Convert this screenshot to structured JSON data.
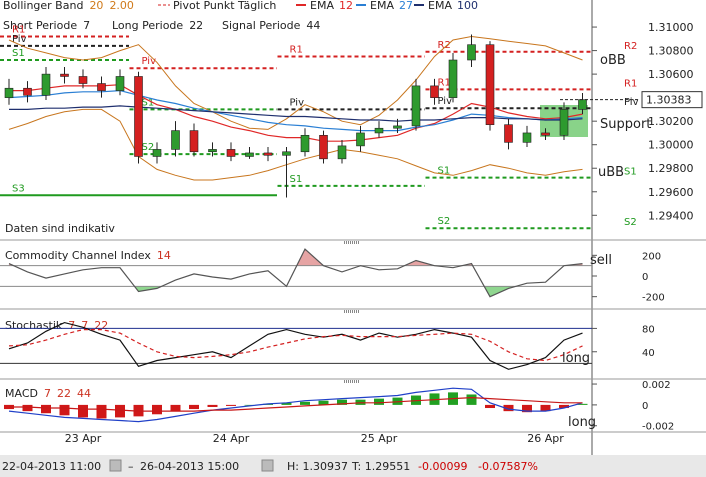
{
  "chart_data": [
    {
      "type": "candlestick",
      "header": {
        "bollinger": {
          "name": "Bollinger Band",
          "params": [
            "20",
            "2.00"
          ]
        },
        "pivot": "Pivot Punkt Täglich",
        "macd_params": [
          {
            "text": "Short Periode",
            "param": "7"
          },
          {
            "text": "Long Periode",
            "param": "22"
          },
          {
            "text": "Signal Periode",
            "param": "44"
          }
        ]
      },
      "categories": [
        null,
        null,
        null,
        null,
        "23 Apr",
        null,
        null,
        null,
        null,
        null,
        null,
        null,
        "24 Apr",
        null,
        null,
        null,
        null,
        null,
        null,
        null,
        "25 Apr",
        null,
        null,
        null,
        null,
        null,
        null,
        null,
        null,
        "26 Apr",
        null,
        null
      ],
      "open": [
        1.304,
        1.3048,
        1.3042,
        1.306,
        1.3058,
        1.3052,
        1.3046,
        1.3058,
        1.299,
        1.2996,
        1.3012,
        1.2994,
        1.2996,
        1.299,
        1.2993,
        1.2991,
        1.2994,
        1.3008,
        1.2988,
        1.2999,
        1.301,
        1.3014,
        1.3016,
        1.305,
        1.304,
        1.3072,
        1.3085,
        1.3017,
        1.3002,
        1.301,
        1.3008,
        1.303
      ],
      "high": [
        1.3056,
        1.3054,
        1.3066,
        1.3066,
        1.3064,
        1.3058,
        1.3064,
        1.3062,
        1.3002,
        1.302,
        1.3018,
        1.3002,
        1.3002,
        1.2998,
        1.2998,
        1.2998,
        1.3014,
        1.3012,
        1.3004,
        1.3016,
        1.302,
        1.3022,
        1.3056,
        1.3056,
        1.3078,
        1.30937,
        1.3088,
        1.3022,
        1.3016,
        1.3014,
        1.3036,
        1.3044
      ],
      "low": [
        1.3034,
        1.3036,
        1.3038,
        1.3052,
        1.3048,
        1.304,
        1.3042,
        1.2984,
        1.2984,
        1.299,
        1.299,
        1.299,
        1.2986,
        1.2988,
        1.2986,
        1.29551,
        1.299,
        1.2984,
        1.2984,
        1.2994,
        1.3006,
        1.301,
        1.3012,
        1.3034,
        1.3036,
        1.3066,
        1.3012,
        1.2996,
        1.2998,
        1.3004,
        1.3004,
        1.3026
      ],
      "close": [
        1.3048,
        1.3042,
        1.306,
        1.3058,
        1.3052,
        1.3046,
        1.3058,
        1.299,
        1.2996,
        1.3012,
        1.2994,
        1.2996,
        1.299,
        1.2993,
        1.2991,
        1.2994,
        1.3008,
        1.2988,
        1.2999,
        1.301,
        1.3014,
        1.3016,
        1.305,
        1.304,
        1.3072,
        1.3085,
        1.3017,
        1.3002,
        1.301,
        1.3008,
        1.303,
        1.30383
      ],
      "up_color": "#2e9a2e",
      "down_color": "#d42020",
      "bollinger": {
        "color": "#c8761e",
        "upper": [
          1.3089,
          1.3082,
          1.3078,
          1.3074,
          1.3072,
          1.3074,
          1.308,
          1.3085,
          1.307,
          1.305,
          1.3035,
          1.3028,
          1.302,
          1.3014,
          1.3013,
          1.3022,
          1.3034,
          1.3028,
          1.302,
          1.3017,
          1.3025,
          1.3038,
          1.3055,
          1.3075,
          1.3089,
          1.3092,
          1.309,
          1.3088,
          1.3086,
          1.3084,
          1.3078,
          1.3072
        ],
        "lower": [
          1.3013,
          1.3018,
          1.3024,
          1.3028,
          1.303,
          1.303,
          1.302,
          1.299,
          1.2979,
          1.2974,
          1.297,
          1.297,
          1.2972,
          1.2974,
          1.2978,
          1.2983,
          1.2988,
          1.2992,
          1.2996,
          1.2994,
          1.2991,
          1.2988,
          1.2982,
          1.2976,
          1.2974,
          1.2978,
          1.2983,
          1.298,
          1.2976,
          1.2974,
          1.2977,
          1.2979
        ]
      },
      "series": [
        {
          "name": "EMA",
          "param": "12",
          "color": "#e02828",
          "values": [
            1.3046,
            1.3046,
            1.3048,
            1.305,
            1.305,
            1.305,
            1.3051,
            1.3042,
            1.3034,
            1.303,
            1.3024,
            1.302,
            1.3015,
            1.3012,
            1.3008,
            1.3006,
            1.3006,
            1.3003,
            1.3003,
            1.3004,
            1.3006,
            1.3008,
            1.3014,
            1.3018,
            1.3026,
            1.3035,
            1.3032,
            1.3027,
            1.3024,
            1.3022,
            1.3023,
            1.3026
          ]
        },
        {
          "name": "EMA",
          "param": "27",
          "color": "#2a7fd4",
          "values": [
            1.304,
            1.3041,
            1.3042,
            1.3044,
            1.3045,
            1.3045,
            1.3046,
            1.3042,
            1.3038,
            1.3035,
            1.3031,
            1.3028,
            1.3025,
            1.3022,
            1.3019,
            1.3017,
            1.3016,
            1.3014,
            1.3013,
            1.3012,
            1.3012,
            1.3012,
            1.3015,
            1.3017,
            1.3021,
            1.3026,
            1.3025,
            1.3023,
            1.3022,
            1.3021,
            1.3022,
            1.3023
          ]
        },
        {
          "name": "EMA",
          "param": "100",
          "color": "#1f2f6e",
          "values": [
            1.303,
            1.303,
            1.3031,
            1.3031,
            1.3032,
            1.3032,
            1.3033,
            1.3032,
            1.3031,
            1.303,
            1.3029,
            1.3028,
            1.3027,
            1.3026,
            1.3025,
            1.3024,
            1.3024,
            1.3023,
            1.3022,
            1.3021,
            1.3021,
            1.302,
            1.3021,
            1.3021,
            1.3022,
            1.3023,
            1.3023,
            1.3022,
            1.3022,
            1.3021,
            1.3021,
            1.3022
          ]
        }
      ],
      "pivot_levels": [
        {
          "label": "R1",
          "value": 1.3092,
          "start": 0,
          "end": 6,
          "color": "#d42020"
        },
        {
          "label": "Piv",
          "value": 1.3084,
          "start": 0,
          "end": 6,
          "color": "#222222"
        },
        {
          "label": "S1",
          "value": 1.3072,
          "start": 0,
          "end": 6,
          "color": "#1f9a1f"
        },
        {
          "label": "Piv",
          "value": 1.3065,
          "start": 7,
          "end": 14,
          "color": "#d42020"
        },
        {
          "label": "S1",
          "value": 1.303,
          "start": 7,
          "end": 14,
          "color": "#1f9a1f"
        },
        {
          "label": "S2",
          "value": 1.2992,
          "start": 7,
          "end": 14,
          "color": "#1f9a1f"
        },
        {
          "label": "S3",
          "value": 1.2957,
          "start": 0,
          "end": 14,
          "color": "#1f9a1f"
        },
        {
          "label": "R1",
          "value": 1.3075,
          "start": 15,
          "end": 22,
          "color": "#d42020"
        },
        {
          "label": "Piv",
          "value": 1.303,
          "start": 15,
          "end": 22,
          "color": "#222222"
        },
        {
          "label": "S1",
          "value": 1.2965,
          "start": 15,
          "end": 22,
          "color": "#1f9a1f"
        },
        {
          "label": "R2",
          "value": 1.3079,
          "start": 23,
          "end": 31,
          "color": "#d42020"
        },
        {
          "label": "R1",
          "value": 1.3047,
          "start": 23,
          "end": 31,
          "color": "#d42020"
        },
        {
          "label": "Piv",
          "value": 1.3031,
          "start": 23,
          "end": 31,
          "color": "#222222"
        },
        {
          "label": "S1",
          "value": 1.2972,
          "start": 23,
          "end": 31,
          "color": "#1f9a1f"
        },
        {
          "label": "S2",
          "value": 1.2929,
          "start": 23,
          "end": 31,
          "color": "#1f9a1f"
        }
      ],
      "annotations": [
        "Daten sind indikativ",
        "oBB",
        "Support",
        "uBB"
      ],
      "last_price": {
        "value": 1.30383,
        "label": "1.30383"
      },
      "ylim": [
        1.2919,
        1.3123
      ],
      "yticks": [
        {
          "value": 1.31,
          "label": "1.31000"
        },
        {
          "value": 1.308,
          "label": "1.30800"
        },
        {
          "value": 1.306,
          "label": "1.30600"
        },
        {
          "value": 1.302,
          "label": "1.30200"
        },
        {
          "value": 1.3,
          "label": "1.30000"
        },
        {
          "value": 1.298,
          "label": "1.29800"
        },
        {
          "value": 1.296,
          "label": "1.29600"
        },
        {
          "value": 1.294,
          "label": "1.29400"
        }
      ]
    },
    {
      "type": "line",
      "title": "Commodity Channel Index",
      "params": [
        "14"
      ],
      "series": [
        {
          "color": "#555555",
          "values": [
            120,
            40,
            -20,
            20,
            60,
            80,
            80,
            -150,
            -120,
            -40,
            20,
            -10,
            -30,
            20,
            50,
            -100,
            260,
            100,
            40,
            100,
            60,
            70,
            150,
            100,
            80,
            120,
            -200,
            -120,
            -70,
            -60,
            100,
            120
          ]
        }
      ],
      "fills": [
        {
          "level": 100,
          "side": "above",
          "color": "#e6a4a4"
        },
        {
          "level": -100,
          "side": "below",
          "color": "#8fd68f"
        }
      ],
      "guides": [
        {
          "value": 100,
          "color": "#8a8a8a"
        },
        {
          "value": -100,
          "color": "#8a8a8a"
        }
      ],
      "annotations": [
        "sell"
      ],
      "ylim": [
        -300,
        300
      ],
      "yticks": [
        200,
        0,
        -200
      ]
    },
    {
      "type": "line",
      "title": "Stochastik",
      "params": [
        "7",
        "7",
        "22"
      ],
      "series": [
        {
          "color": "#111111",
          "values": [
            45,
            55,
            75,
            90,
            82,
            70,
            60,
            15,
            25,
            30,
            35,
            40,
            30,
            50,
            70,
            78,
            70,
            65,
            70,
            60,
            72,
            65,
            70,
            78,
            72,
            65,
            25,
            10,
            18,
            30,
            60,
            72
          ]
        },
        {
          "color": "#d42020",
          "dash": true,
          "values": [
            50,
            52,
            60,
            70,
            78,
            78,
            72,
            55,
            40,
            32,
            30,
            32,
            35,
            40,
            48,
            55,
            62,
            66,
            68,
            66,
            66,
            66,
            68,
            70,
            72,
            70,
            58,
            40,
            28,
            25,
            35,
            50
          ]
        }
      ],
      "guides": [
        {
          "value": 80,
          "color": "#1f2f8e"
        },
        {
          "value": 20,
          "color": "#333333"
        }
      ],
      "annotations": [
        "long"
      ],
      "ylim": [
        -5,
        103
      ],
      "yticks": [
        80,
        40
      ]
    },
    {
      "type": "bar",
      "title": "MACD",
      "params": [
        "7",
        "22",
        "44"
      ],
      "series": [
        {
          "style": "bar",
          "color_up": "#22a022",
          "color_down": "#d01818",
          "values": [
            -0.0004,
            -0.0006,
            -0.0008,
            -0.001,
            -0.0012,
            -0.0013,
            -0.0012,
            -0.0011,
            -0.0009,
            -0.0006,
            -0.0004,
            -0.0002,
            -0.0001,
            0.0,
            0.0001,
            0.0002,
            0.0003,
            0.0004,
            0.0005,
            0.0005,
            0.0006,
            0.0007,
            0.0009,
            0.0011,
            0.0012,
            0.001,
            -0.0003,
            -0.0006,
            -0.0007,
            -0.0006,
            -0.0003,
            0.0001
          ]
        },
        {
          "style": "line",
          "color": "#2040c8",
          "values": [
            -0.0006,
            -0.0008,
            -0.001,
            -0.0012,
            -0.0013,
            -0.0014,
            -0.0015,
            -0.0016,
            -0.0014,
            -0.0011,
            -0.0008,
            -0.0005,
            -0.0003,
            -0.0001,
            0.0001,
            0.0002,
            0.0004,
            0.0005,
            0.0006,
            0.0007,
            0.0008,
            0.0009,
            0.0012,
            0.0014,
            0.0016,
            0.0015,
            0.0002,
            -0.0004,
            -0.0006,
            -0.0006,
            -0.0003,
            0.0002
          ]
        },
        {
          "style": "line",
          "color": "#c81818",
          "values": [
            -0.0002,
            -0.0002,
            -0.0003,
            -0.0003,
            -0.0004,
            -0.0004,
            -0.0005,
            -0.0006,
            -0.0006,
            -0.0006,
            -0.0006,
            -0.0005,
            -0.0005,
            -0.0004,
            -0.0003,
            -0.0002,
            -0.0001,
            0.0,
            0.0001,
            0.0002,
            0.0002,
            0.0003,
            0.0004,
            0.0005,
            0.0006,
            0.0007,
            0.0006,
            0.0005,
            0.0004,
            0.0003,
            0.0002,
            0.0002
          ]
        }
      ],
      "annotations": [
        "long"
      ],
      "ylim": [
        -0.0026,
        0.0021
      ],
      "yticks": [
        0.002,
        0,
        -0.002
      ]
    }
  ],
  "footer": {
    "start": "22-04-2013 11:00",
    "end": "26-04-2013 15:00",
    "high": "H: 1.30937",
    "low": "T: 1.29551",
    "change": "-0.00099",
    "change_pct": "-0.07587%"
  }
}
